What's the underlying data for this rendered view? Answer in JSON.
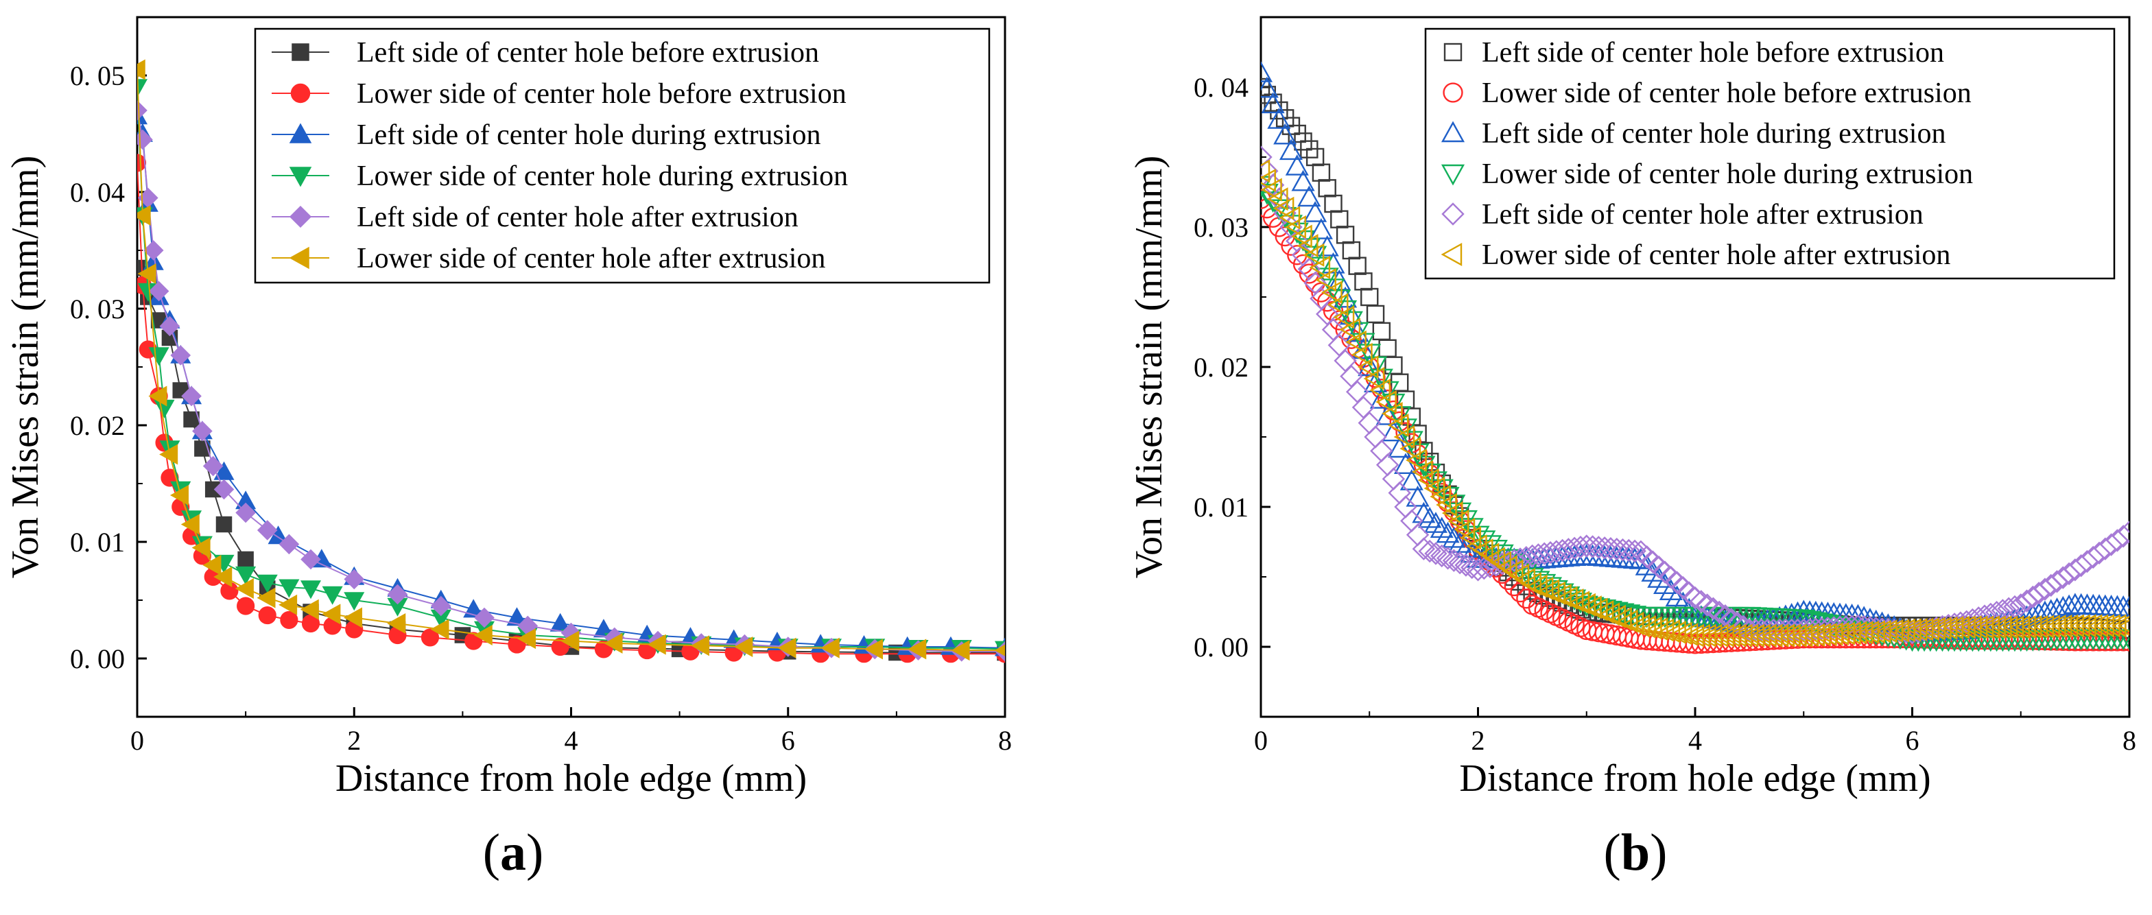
{
  "figure": {
    "panel_labels": [
      "(a)",
      "(b)"
    ]
  },
  "colors": {
    "s1": "#3a3a3a",
    "s2": "#ff2a2a",
    "s3": "#1f5fc8",
    "s4": "#12b05a",
    "s5": "#a77ad6",
    "s6": "#d9a300"
  },
  "chart_data": [
    {
      "panel": "(a)",
      "type": "line",
      "title": "",
      "xlabel": "Distance from hole edge (mm)",
      "ylabel": "Von Mises strain (mm/mm)",
      "xlim": [
        0,
        8
      ],
      "ylim": [
        -0.005,
        0.055
      ],
      "xticks": [
        0,
        2,
        4,
        6,
        8
      ],
      "yticks": [
        0.0,
        0.01,
        0.02,
        0.03,
        0.04,
        0.05
      ],
      "ytick_labels": [
        "0. 00",
        "0. 01",
        "0. 02",
        "0. 03",
        "0. 04",
        "0. 05"
      ],
      "legend_position": "top-right",
      "marker_style": "filled",
      "series": [
        {
          "name": "Left side of center hole before extrusion",
          "color_key": "s1",
          "marker": "square",
          "x": [
            0,
            0.1,
            0.2,
            0.3,
            0.4,
            0.5,
            0.6,
            0.7,
            0.8,
            1.0,
            1.2,
            1.6,
            2.0,
            2.4,
            3.0,
            3.5,
            4.0,
            5.0,
            6.0,
            7.0,
            8.0
          ],
          "y": [
            0.0335,
            0.031,
            0.029,
            0.0275,
            0.023,
            0.0205,
            0.018,
            0.0145,
            0.0115,
            0.0085,
            0.006,
            0.004,
            0.003,
            0.0025,
            0.002,
            0.0015,
            0.001,
            0.0008,
            0.0006,
            0.0005,
            0.0005
          ]
        },
        {
          "name": "Lower side of center hole before extrusion",
          "color_key": "s2",
          "marker": "circle",
          "x": [
            0,
            0.05,
            0.1,
            0.2,
            0.25,
            0.3,
            0.4,
            0.5,
            0.6,
            0.7,
            0.85,
            1.0,
            1.2,
            1.4,
            1.6,
            1.8,
            2.0,
            2.4,
            2.7,
            3.1,
            3.5,
            3.9,
            4.3,
            4.7,
            5.1,
            5.5,
            5.9,
            6.3,
            6.7,
            7.1,
            7.5,
            8.0
          ],
          "y": [
            0.0425,
            0.032,
            0.0265,
            0.0225,
            0.0185,
            0.0155,
            0.013,
            0.0105,
            0.0088,
            0.007,
            0.0058,
            0.0045,
            0.0037,
            0.0033,
            0.003,
            0.0028,
            0.0025,
            0.002,
            0.0018,
            0.0015,
            0.0012,
            0.001,
            0.0008,
            0.0007,
            0.0006,
            0.0005,
            0.0005,
            0.0004,
            0.0004,
            0.0004,
            0.0004,
            0.0004
          ]
        },
        {
          "name": "Left side of center hole during extrusion",
          "color_key": "s3",
          "marker": "triangle-up",
          "x": [
            0,
            0.05,
            0.1,
            0.15,
            0.2,
            0.3,
            0.4,
            0.5,
            0.6,
            0.8,
            1.0,
            1.3,
            1.7,
            2.0,
            2.4,
            2.8,
            3.1,
            3.5,
            3.9,
            4.3,
            4.7,
            5.1,
            5.5,
            5.9,
            6.3,
            6.7,
            7.1,
            7.5,
            8.0
          ],
          "y": [
            0.0465,
            0.045,
            0.039,
            0.034,
            0.031,
            0.029,
            0.026,
            0.0225,
            0.0195,
            0.016,
            0.0135,
            0.0105,
            0.0085,
            0.007,
            0.006,
            0.005,
            0.0042,
            0.0035,
            0.003,
            0.0025,
            0.002,
            0.0018,
            0.0016,
            0.0014,
            0.0012,
            0.0011,
            0.001,
            0.001,
            0.0009
          ]
        },
        {
          "name": "Lower side of center hole during extrusion",
          "color_key": "s4",
          "marker": "triangle-down",
          "x": [
            0,
            0.05,
            0.1,
            0.2,
            0.25,
            0.3,
            0.4,
            0.5,
            0.6,
            0.8,
            1.0,
            1.2,
            1.4,
            1.6,
            1.8,
            2.0,
            2.4,
            2.8,
            3.2,
            3.6,
            4.0,
            4.4,
            4.8,
            5.2,
            5.6,
            6.0,
            6.4,
            6.8,
            7.2,
            7.6,
            8.0
          ],
          "y": [
            0.049,
            0.038,
            0.0315,
            0.026,
            0.0215,
            0.018,
            0.0145,
            0.012,
            0.0098,
            0.0082,
            0.0072,
            0.0065,
            0.0061,
            0.006,
            0.0055,
            0.005,
            0.0045,
            0.0035,
            0.0025,
            0.002,
            0.0018,
            0.0015,
            0.0013,
            0.0012,
            0.0011,
            0.001,
            0.001,
            0.001,
            0.0009,
            0.0009,
            0.0008
          ]
        },
        {
          "name": "Left side of center hole after extrusion",
          "color_key": "s5",
          "marker": "diamond",
          "x": [
            0,
            0.05,
            0.1,
            0.15,
            0.2,
            0.3,
            0.4,
            0.5,
            0.6,
            0.7,
            0.8,
            1.0,
            1.2,
            1.4,
            1.6,
            2.0,
            2.4,
            2.8,
            3.2,
            3.6,
            4.0,
            4.4,
            4.8,
            5.2,
            5.6,
            6.0,
            6.4,
            6.8,
            7.2,
            7.6,
            8.0
          ],
          "y": [
            0.047,
            0.0445,
            0.0395,
            0.035,
            0.0315,
            0.0285,
            0.026,
            0.0225,
            0.0195,
            0.0165,
            0.0145,
            0.0125,
            0.011,
            0.0098,
            0.0085,
            0.0068,
            0.0055,
            0.0045,
            0.0035,
            0.0028,
            0.0022,
            0.0018,
            0.0015,
            0.0013,
            0.0012,
            0.001,
            0.0009,
            0.0008,
            0.0007,
            0.0006,
            0.0006
          ]
        },
        {
          "name": "Lower side of center hole after extrusion",
          "color_key": "s6",
          "marker": "triangle-left",
          "x": [
            0,
            0.05,
            0.1,
            0.2,
            0.3,
            0.4,
            0.5,
            0.6,
            0.7,
            0.8,
            1.0,
            1.2,
            1.4,
            1.6,
            1.8,
            2.0,
            2.4,
            2.8,
            3.2,
            3.6,
            4.0,
            4.4,
            4.8,
            5.2,
            5.6,
            6.0,
            6.4,
            6.8,
            7.2,
            7.6,
            8.0
          ],
          "y": [
            0.0505,
            0.038,
            0.033,
            0.0225,
            0.0175,
            0.014,
            0.0115,
            0.0095,
            0.008,
            0.007,
            0.006,
            0.0052,
            0.0046,
            0.0042,
            0.0038,
            0.0035,
            0.003,
            0.0025,
            0.002,
            0.0017,
            0.0015,
            0.0013,
            0.0012,
            0.0011,
            0.001,
            0.0009,
            0.0009,
            0.0008,
            0.0008,
            0.0007,
            0.0007
          ]
        }
      ]
    },
    {
      "panel": "(b)",
      "type": "scatter",
      "title": "",
      "xlabel": "Distance from hole edge (mm)",
      "ylabel": "Von Mises strain (mm/mm)",
      "xlim": [
        0,
        8
      ],
      "ylim": [
        -0.005,
        0.045
      ],
      "xticks": [
        0,
        2,
        4,
        6,
        8
      ],
      "yticks": [
        0.0,
        0.01,
        0.02,
        0.03,
        0.04
      ],
      "ytick_labels": [
        "0. 00",
        "0. 01",
        "0. 02",
        "0. 03",
        "0. 04"
      ],
      "legend_position": "top-right",
      "marker_style": "hollow",
      "series": [
        {
          "name": "Left side of center hole before extrusion",
          "color_key": "s1",
          "marker": "square",
          "x": [
            0,
            0.5,
            1.0,
            1.5,
            2.0,
            2.5,
            3.0,
            3.5,
            4.0,
            4.5,
            5.0,
            5.5,
            6.0,
            6.5,
            7.0,
            7.5,
            8.0
          ],
          "y": [
            0.04,
            0.035,
            0.025,
            0.014,
            0.007,
            0.004,
            0.0025,
            0.0022,
            0.0022,
            0.002,
            0.0018,
            0.0015,
            0.0015,
            0.0015,
            0.0015,
            0.0015,
            0.0012
          ]
        },
        {
          "name": "Lower side of center hole before extrusion",
          "color_key": "s2",
          "marker": "circle",
          "x": [
            0,
            0.5,
            1.0,
            1.5,
            2.0,
            2.5,
            3.0,
            3.5,
            4.0,
            4.5,
            5.0,
            5.5,
            6.0,
            6.5,
            7.0,
            7.5,
            8.0
          ],
          "y": [
            0.032,
            0.026,
            0.02,
            0.013,
            0.007,
            0.003,
            0.0012,
            0.0005,
            0.0002,
            0.0004,
            0.0006,
            0.0006,
            0.0006,
            0.0005,
            0.0005,
            0.0004,
            0.0004
          ]
        },
        {
          "name": "Left side of center hole during extrusion",
          "color_key": "s3",
          "marker": "triangle-up",
          "x": [
            0,
            0.5,
            1.0,
            1.5,
            2.0,
            2.5,
            3.0,
            3.5,
            4.0,
            4.5,
            5.0,
            5.5,
            6.0,
            6.5,
            7.0,
            7.5,
            8.0
          ],
          "y": [
            0.041,
            0.031,
            0.02,
            0.0095,
            0.0063,
            0.0062,
            0.0065,
            0.0062,
            0.0022,
            0.0015,
            0.0025,
            0.0022,
            0.001,
            0.0012,
            0.002,
            0.003,
            0.0028
          ]
        },
        {
          "name": "Lower side of center hole during extrusion",
          "color_key": "s4",
          "marker": "triangle-down",
          "x": [
            0,
            0.5,
            1.0,
            1.5,
            2.0,
            2.5,
            3.0,
            3.5,
            4.0,
            4.5,
            5.0,
            5.5,
            6.0,
            6.5,
            7.0,
            7.5,
            8.0
          ],
          "y": [
            0.033,
            0.028,
            0.021,
            0.013,
            0.008,
            0.005,
            0.003,
            0.0022,
            0.0022,
            0.0022,
            0.002,
            0.0012,
            0.0005,
            0.0005,
            0.0005,
            0.0006,
            0.0006
          ]
        },
        {
          "name": "Left side of center hole after extrusion",
          "color_key": "s5",
          "marker": "diamond",
          "x": [
            0,
            0.5,
            1.0,
            1.5,
            2.0,
            2.5,
            3.0,
            3.5,
            4.0,
            4.5,
            5.0,
            5.5,
            6.0,
            6.5,
            7.0,
            7.5,
            8.0
          ],
          "y": [
            0.035,
            0.026,
            0.016,
            0.007,
            0.0055,
            0.0065,
            0.0072,
            0.0068,
            0.0035,
            0.0012,
            0.0012,
            0.0015,
            0.001,
            0.0018,
            0.003,
            0.0055,
            0.0082
          ]
        },
        {
          "name": "Lower side of center hole after extrusion",
          "color_key": "s6",
          "marker": "triangle-left",
          "x": [
            0,
            0.5,
            1.0,
            1.5,
            2.0,
            2.5,
            3.0,
            3.5,
            4.0,
            4.5,
            5.0,
            5.5,
            6.0,
            6.5,
            7.0,
            7.5,
            8.0
          ],
          "y": [
            0.034,
            0.028,
            0.02,
            0.0125,
            0.0072,
            0.0045,
            0.003,
            0.0015,
            0.0008,
            0.0008,
            0.0008,
            0.001,
            0.0012,
            0.0014,
            0.0014,
            0.0015,
            0.0015
          ]
        }
      ]
    }
  ]
}
